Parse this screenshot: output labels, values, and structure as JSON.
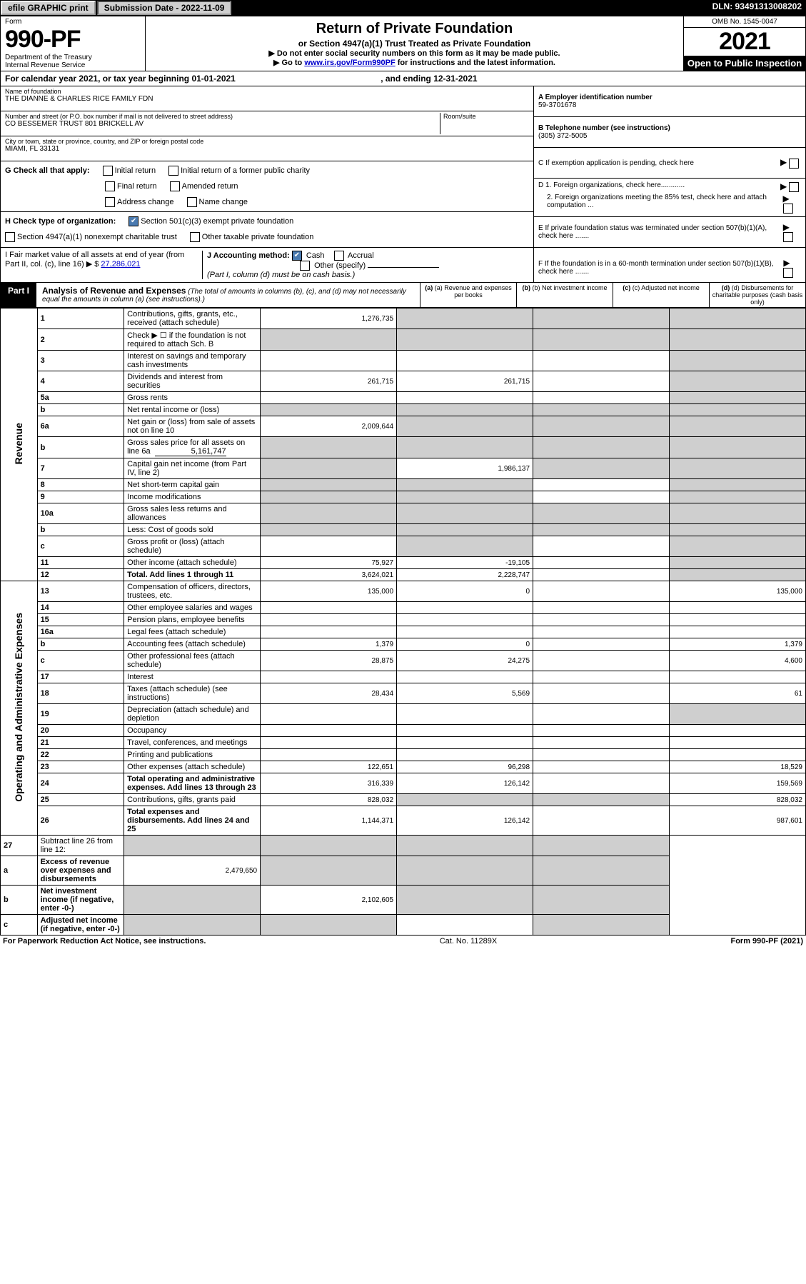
{
  "top": {
    "efile": "efile GRAPHIC print",
    "submission_label": "Submission Date - 2022-11-09",
    "dln": "DLN: 93491313008202"
  },
  "header": {
    "form_label": "Form",
    "form_number": "990-PF",
    "dept1": "Department of the Treasury",
    "dept2": "Internal Revenue Service",
    "title": "Return of Private Foundation",
    "subtitle": "or Section 4947(a)(1) Trust Treated as Private Foundation",
    "instr1": "▶ Do not enter social security numbers on this form as it may be made public.",
    "instr2_pre": "▶ Go to ",
    "instr2_link": "www.irs.gov/Form990PF",
    "instr2_post": " for instructions and the latest information.",
    "omb": "OMB No. 1545-0047",
    "year": "2021",
    "open": "Open to Public Inspection"
  },
  "cal_year": {
    "pre": "For calendar year 2021, or tax year beginning ",
    "begin": "01-01-2021",
    "mid": " , and ending ",
    "end": "12-31-2021"
  },
  "info": {
    "name_label": "Name of foundation",
    "name": "THE DIANNE & CHARLES RICE FAMILY FDN",
    "street_label": "Number and street (or P.O. box number if mail is not delivered to street address)",
    "street": "CO BESSEMER TRUST 801 BRICKELL AV",
    "room_label": "Room/suite",
    "city_label": "City or town, state or province, country, and ZIP or foreign postal code",
    "city": "MIAMI, FL  33131",
    "g_label": "G Check all that apply:",
    "g_opts": {
      "initial": "Initial return",
      "initial_former": "Initial return of a former public charity",
      "final": "Final return",
      "amended": "Amended return",
      "address": "Address change",
      "name_change": "Name change"
    },
    "h_label": "H Check type of organization:",
    "h_501c3": "Section 501(c)(3) exempt private foundation",
    "h_4947": "Section 4947(a)(1) nonexempt charitable trust",
    "h_other": "Other taxable private foundation",
    "i_label": "I Fair market value of all assets at end of year (from Part II, col. (c), line 16) ▶ $",
    "i_value": "27,286,021",
    "j_label": "J Accounting method:",
    "j_cash": "Cash",
    "j_accrual": "Accrual",
    "j_other": "Other (specify)",
    "j_note": "(Part I, column (d) must be on cash basis.)"
  },
  "right": {
    "a_label": "A Employer identification number",
    "a_val": "59-3701678",
    "b_label": "B Telephone number (see instructions)",
    "b_val": "(305) 372-5005",
    "c_label": "C If exemption application is pending, check here",
    "d1": "D 1. Foreign organizations, check here............",
    "d2": "2. Foreign organizations meeting the 85% test, check here and attach computation ...",
    "e": "E  If private foundation status was terminated under section 507(b)(1)(A), check here .......",
    "f": "F  If the foundation is in a 60-month termination under section 507(b)(1)(B), check here .......",
    "arrow": "▶"
  },
  "part1": {
    "part_label": "Part I",
    "title": "Analysis of Revenue and Expenses",
    "note": "(The total of amounts in columns (b), (c), and (d) may not necessarily equal the amounts in column (a) (see instructions).)",
    "col_a": "(a) Revenue and expenses per books",
    "col_b": "(b) Net investment income",
    "col_c": "(c) Adjusted net income",
    "col_d": "(d) Disbursements for charitable purposes (cash basis only)",
    "side_revenue": "Revenue",
    "side_expenses": "Operating and Administrative Expenses"
  },
  "rows": [
    {
      "n": "1",
      "desc": "Contributions, gifts, grants, etc., received (attach schedule)",
      "a": "1,276,735",
      "b": "",
      "c": "",
      "d": "",
      "b_shade": true,
      "c_shade": true,
      "d_shade": true
    },
    {
      "n": "2",
      "desc": "Check ▶ ☐ if the foundation is not required to attach Sch. B",
      "a": "",
      "b": "",
      "c": "",
      "d": "",
      "a_shade": true,
      "b_shade": true,
      "c_shade": true,
      "d_shade": true,
      "bold_insert": true
    },
    {
      "n": "3",
      "desc": "Interest on savings and temporary cash investments",
      "a": "",
      "b": "",
      "c": "",
      "d": "",
      "d_shade": true
    },
    {
      "n": "4",
      "desc": "Dividends and interest from securities",
      "a": "261,715",
      "b": "261,715",
      "c": "",
      "d": "",
      "d_shade": true
    },
    {
      "n": "5a",
      "desc": "Gross rents",
      "a": "",
      "b": "",
      "c": "",
      "d": "",
      "d_shade": true
    },
    {
      "n": "b",
      "desc": "Net rental income or (loss)",
      "a": "",
      "b": "",
      "c": "",
      "d": "",
      "a_shade": true,
      "b_shade": true,
      "c_shade": true,
      "d_shade": true
    },
    {
      "n": "6a",
      "desc": "Net gain or (loss) from sale of assets not on line 10",
      "a": "2,009,644",
      "b": "",
      "c": "",
      "d": "",
      "b_shade": true,
      "c_shade": true,
      "d_shade": true
    },
    {
      "n": "b",
      "desc": "Gross sales price for all assets on line 6a",
      "inline_val": "5,161,747",
      "a": "",
      "b": "",
      "c": "",
      "d": "",
      "a_shade": true,
      "b_shade": true,
      "c_shade": true,
      "d_shade": true
    },
    {
      "n": "7",
      "desc": "Capital gain net income (from Part IV, line 2)",
      "a": "",
      "b": "1,986,137",
      "c": "",
      "d": "",
      "a_shade": true,
      "c_shade": true,
      "d_shade": true
    },
    {
      "n": "8",
      "desc": "Net short-term capital gain",
      "a": "",
      "b": "",
      "c": "",
      "d": "",
      "a_shade": true,
      "b_shade": true,
      "d_shade": true
    },
    {
      "n": "9",
      "desc": "Income modifications",
      "a": "",
      "b": "",
      "c": "",
      "d": "",
      "a_shade": true,
      "b_shade": true,
      "d_shade": true
    },
    {
      "n": "10a",
      "desc": "Gross sales less returns and allowances",
      "a": "",
      "b": "",
      "c": "",
      "d": "",
      "a_shade": true,
      "b_shade": true,
      "c_shade": true,
      "d_shade": true
    },
    {
      "n": "b",
      "desc": "Less: Cost of goods sold",
      "a": "",
      "b": "",
      "c": "",
      "d": "",
      "a_shade": true,
      "b_shade": true,
      "c_shade": true,
      "d_shade": true
    },
    {
      "n": "c",
      "desc": "Gross profit or (loss) (attach schedule)",
      "a": "",
      "b": "",
      "c": "",
      "d": "",
      "b_shade": true,
      "d_shade": true
    },
    {
      "n": "11",
      "desc": "Other income (attach schedule)",
      "a": "75,927",
      "b": "-19,105",
      "c": "",
      "d": "",
      "d_shade": true
    },
    {
      "n": "12",
      "desc": "Total. Add lines 1 through 11",
      "bold": true,
      "a": "3,624,021",
      "b": "2,228,747",
      "c": "",
      "d": "",
      "d_shade": true
    }
  ],
  "exp_rows": [
    {
      "n": "13",
      "desc": "Compensation of officers, directors, trustees, etc.",
      "a": "135,000",
      "b": "0",
      "c": "",
      "d": "135,000"
    },
    {
      "n": "14",
      "desc": "Other employee salaries and wages",
      "a": "",
      "b": "",
      "c": "",
      "d": ""
    },
    {
      "n": "15",
      "desc": "Pension plans, employee benefits",
      "a": "",
      "b": "",
      "c": "",
      "d": ""
    },
    {
      "n": "16a",
      "desc": "Legal fees (attach schedule)",
      "a": "",
      "b": "",
      "c": "",
      "d": ""
    },
    {
      "n": "b",
      "desc": "Accounting fees (attach schedule)",
      "a": "1,379",
      "b": "0",
      "c": "",
      "d": "1,379"
    },
    {
      "n": "c",
      "desc": "Other professional fees (attach schedule)",
      "a": "28,875",
      "b": "24,275",
      "c": "",
      "d": "4,600"
    },
    {
      "n": "17",
      "desc": "Interest",
      "a": "",
      "b": "",
      "c": "",
      "d": ""
    },
    {
      "n": "18",
      "desc": "Taxes (attach schedule) (see instructions)",
      "a": "28,434",
      "b": "5,569",
      "c": "",
      "d": "61"
    },
    {
      "n": "19",
      "desc": "Depreciation (attach schedule) and depletion",
      "a": "",
      "b": "",
      "c": "",
      "d": "",
      "d_shade": true
    },
    {
      "n": "20",
      "desc": "Occupancy",
      "a": "",
      "b": "",
      "c": "",
      "d": ""
    },
    {
      "n": "21",
      "desc": "Travel, conferences, and meetings",
      "a": "",
      "b": "",
      "c": "",
      "d": ""
    },
    {
      "n": "22",
      "desc": "Printing and publications",
      "a": "",
      "b": "",
      "c": "",
      "d": ""
    },
    {
      "n": "23",
      "desc": "Other expenses (attach schedule)",
      "a": "122,651",
      "b": "96,298",
      "c": "",
      "d": "18,529"
    },
    {
      "n": "24",
      "desc": "Total operating and administrative expenses. Add lines 13 through 23",
      "bold": true,
      "a": "316,339",
      "b": "126,142",
      "c": "",
      "d": "159,569"
    },
    {
      "n": "25",
      "desc": "Contributions, gifts, grants paid",
      "a": "828,032",
      "b": "",
      "c": "",
      "d": "828,032",
      "b_shade": true,
      "c_shade": true
    },
    {
      "n": "26",
      "desc": "Total expenses and disbursements. Add lines 24 and 25",
      "bold": true,
      "a": "1,144,371",
      "b": "126,142",
      "c": "",
      "d": "987,601"
    }
  ],
  "bottom_rows": [
    {
      "n": "27",
      "desc": "Subtract line 26 from line 12:",
      "a": "",
      "b": "",
      "c": "",
      "d": "",
      "a_shade": true,
      "b_shade": true,
      "c_shade": true,
      "d_shade": true
    },
    {
      "n": "a",
      "desc": "Excess of revenue over expenses and disbursements",
      "bold": true,
      "a": "2,479,650",
      "b": "",
      "c": "",
      "d": "",
      "b_shade": true,
      "c_shade": true,
      "d_shade": true
    },
    {
      "n": "b",
      "desc": "Net investment income (if negative, enter -0-)",
      "bold": true,
      "a": "",
      "b": "2,102,605",
      "c": "",
      "d": "",
      "a_shade": true,
      "c_shade": true,
      "d_shade": true
    },
    {
      "n": "c",
      "desc": "Adjusted net income (if negative, enter -0-)",
      "bold": true,
      "a": "",
      "b": "",
      "c": "",
      "d": "",
      "a_shade": true,
      "b_shade": true,
      "d_shade": true
    }
  ],
  "footer": {
    "left": "For Paperwork Reduction Act Notice, see instructions.",
    "mid": "Cat. No. 11289X",
    "right": "Form 990-PF (2021)"
  }
}
